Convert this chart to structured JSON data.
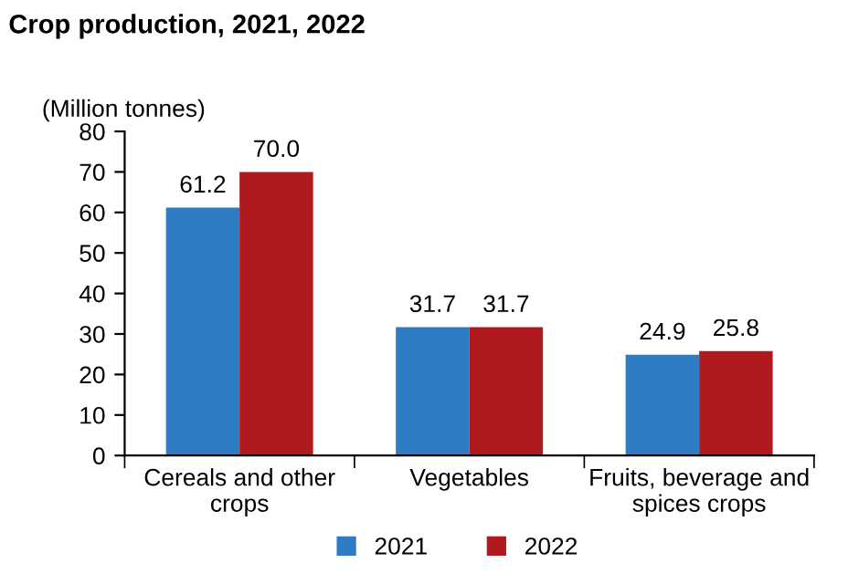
{
  "chart_data": {
    "type": "bar",
    "title": "Crop production, 2021, 2022",
    "ylabel": "(Million tonnes)",
    "categories": [
      "Cereals and other crops",
      "Vegetables",
      "Fruits, beverage and spices crops"
    ],
    "series": [
      {
        "name": "2021",
        "color": "#2e7dc4",
        "values": [
          61.2,
          31.7,
          24.9
        ],
        "value_labels": [
          "61.2",
          "31.7",
          "24.9"
        ]
      },
      {
        "name": "2022",
        "color": "#b0191e",
        "values": [
          70.0,
          31.7,
          25.8
        ],
        "value_labels": [
          "70.0",
          "31.7",
          "25.8"
        ]
      }
    ],
    "ylim": [
      0,
      80
    ],
    "yticks": [
      0,
      10,
      20,
      30,
      40,
      50,
      60,
      70,
      80
    ],
    "grid": false,
    "legend": "bottom"
  }
}
